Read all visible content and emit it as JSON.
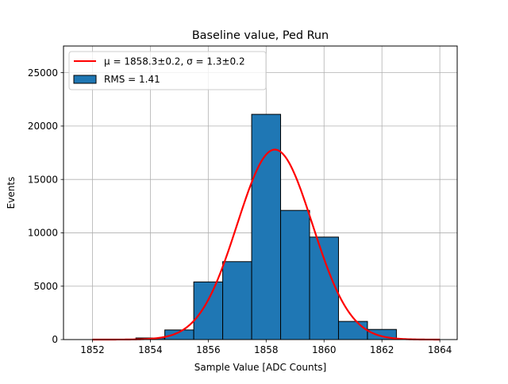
{
  "chart_data": {
    "type": "bar",
    "title": "Baseline value, Ped Run",
    "xlabel": "Sample Value [ADC Counts]",
    "ylabel": "Events",
    "xlim": [
      1851,
      1864.6
    ],
    "ylim": [
      0,
      27500
    ],
    "grid": true,
    "legend_position": "top-left",
    "x_ticks": [
      1852,
      1854,
      1856,
      1858,
      1860,
      1862,
      1864
    ],
    "y_ticks": [
      0,
      5000,
      10000,
      15000,
      20000,
      25000
    ],
    "histogram": {
      "name": "RMS = 1.41",
      "color": "#1f77b4",
      "edge_color": "#000000",
      "bins": [
        {
          "left": 1853.5,
          "right": 1854.5,
          "value": 150
        },
        {
          "left": 1854.5,
          "right": 1855.5,
          "value": 900
        },
        {
          "left": 1855.5,
          "right": 1856.5,
          "value": 5400
        },
        {
          "left": 1856.5,
          "right": 1857.5,
          "value": 7300
        },
        {
          "left": 1857.5,
          "right": 1858.5,
          "value": 21100
        },
        {
          "left": 1858.5,
          "right": 1859.5,
          "value": 12100
        },
        {
          "left": 1859.5,
          "right": 1860.5,
          "value": 9600
        },
        {
          "left": 1860.5,
          "right": 1861.5,
          "value": 1700
        },
        {
          "left": 1861.5,
          "right": 1862.5,
          "value": 950
        }
      ]
    },
    "fit": {
      "name": "μ = 1858.3±0.2, σ = 1.3±0.2",
      "color": "#ff0000",
      "type": "gaussian",
      "mean": 1858.3,
      "sigma": 1.3,
      "amplitude": 17800,
      "x_range": [
        1852,
        1864
      ]
    }
  }
}
